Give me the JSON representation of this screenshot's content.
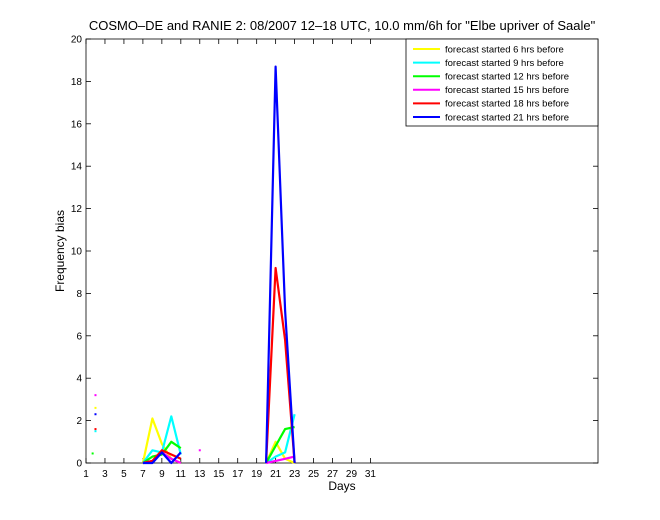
{
  "chart_data": {
    "type": "line",
    "title": "COSMO–DE and RANIE 2: 08/2007 12–18 UTC, 10.0 mm/6h for \"Elbe upriver of Saale\"",
    "xlabel": "Days",
    "ylabel": "Frequency bias",
    "xlim": [
      1,
      55
    ],
    "ylim": [
      0,
      20
    ],
    "xticks": [
      1,
      3,
      5,
      7,
      9,
      11,
      13,
      15,
      17,
      19,
      21,
      23,
      25,
      27,
      29,
      31
    ],
    "yticks": [
      0,
      2,
      4,
      6,
      8,
      10,
      12,
      14,
      16,
      18,
      20
    ],
    "legend_position": "top-right",
    "grid": false,
    "series": [
      {
        "name": "forecast started 6 hrs before",
        "color": "#ffff00",
        "segments": [
          [
            [
              7,
              0
            ],
            [
              8,
              2.1
            ],
            [
              9,
              0.9
            ],
            [
              10,
              0.2
            ],
            [
              11,
              0
            ]
          ],
          [
            [
              20,
              0
            ],
            [
              21,
              1.0
            ],
            [
              22,
              0.2
            ],
            [
              23,
              0
            ]
          ]
        ],
        "points": [
          [
            2,
            2.6
          ]
        ]
      },
      {
        "name": "forecast started 9 hrs before",
        "color": "#00ffff",
        "segments": [
          [
            [
              7,
              0
            ],
            [
              8,
              0.6
            ],
            [
              9,
              0.5
            ],
            [
              10,
              2.2
            ],
            [
              11,
              0.4
            ]
          ],
          [
            [
              20,
              0
            ],
            [
              21,
              0.3
            ],
            [
              22,
              0.5
            ],
            [
              23,
              2.3
            ]
          ]
        ],
        "points": [
          [
            2,
            1.5
          ]
        ]
      },
      {
        "name": "forecast started 12 hrs before",
        "color": "#00ff00",
        "segments": [
          [
            [
              7,
              0
            ],
            [
              8,
              0.3
            ],
            [
              9,
              0.4
            ],
            [
              10,
              1.0
            ],
            [
              11,
              0.7
            ]
          ],
          [
            [
              20,
              0
            ],
            [
              21,
              0.8
            ],
            [
              22,
              1.6
            ],
            [
              23,
              1.7
            ]
          ]
        ],
        "points": [
          [
            1.7,
            0.45
          ]
        ]
      },
      {
        "name": "forecast started 15 hrs before",
        "color": "#ff00ff",
        "segments": [
          [
            [
              7,
              0
            ],
            [
              8,
              0.1
            ],
            [
              9,
              0.5
            ],
            [
              10,
              0.2
            ],
            [
              11,
              0
            ]
          ],
          [
            [
              20,
              0
            ],
            [
              21,
              0.1
            ],
            [
              22,
              0.2
            ],
            [
              23,
              0.3
            ]
          ]
        ],
        "points": [
          [
            2,
            3.2
          ],
          [
            13,
            0.6
          ]
        ]
      },
      {
        "name": "forecast started 18 hrs before",
        "color": "#ff0000",
        "segments": [
          [
            [
              7,
              0
            ],
            [
              8,
              0.1
            ],
            [
              9,
              0.6
            ],
            [
              10,
              0.4
            ],
            [
              11,
              0.2
            ]
          ],
          [
            [
              20,
              0
            ],
            [
              21,
              9.2
            ],
            [
              22,
              5.8
            ],
            [
              23,
              0
            ]
          ]
        ],
        "points": [
          [
            2,
            1.6
          ]
        ]
      },
      {
        "name": "forecast started 21 hrs before",
        "color": "#0000ff",
        "segments": [
          [
            [
              7,
              0
            ],
            [
              8,
              0
            ],
            [
              9,
              0.5
            ],
            [
              10,
              0
            ],
            [
              11,
              0.5
            ]
          ],
          [
            [
              20,
              0
            ],
            [
              21,
              18.7
            ],
            [
              22,
              7.2
            ],
            [
              23,
              0
            ]
          ]
        ],
        "points": [
          [
            2,
            2.3
          ]
        ]
      }
    ]
  }
}
